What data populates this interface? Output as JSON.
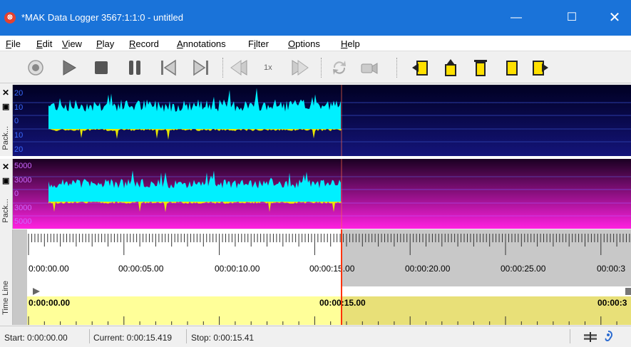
{
  "window": {
    "title": "*MAK Data Logger 3567:1:1:0 - untitled"
  },
  "menu": [
    "File",
    "Edit",
    "View",
    "Play",
    "Record",
    "Annotations",
    "Filter",
    "Options",
    "Help"
  ],
  "menu_mnemonics": [
    "F",
    "E",
    "V",
    "P",
    "R",
    "A",
    "i",
    "O",
    "H"
  ],
  "toolbar": {
    "speed_label": "1x",
    "buttons": [
      "record-icon",
      "play-icon",
      "stop-icon",
      "pause-icon",
      "skip-to-start-icon",
      "skip-to-end-icon",
      "step-back-icon",
      "step-forward-icon",
      "loop-icon",
      "camera-icon",
      "annotation-left-icon",
      "annotation-up-icon",
      "annotation-marker-icon",
      "annotation-flag-icon",
      "annotation-right-icon"
    ]
  },
  "tracks": [
    {
      "label": "Pack...",
      "y_labels": [
        "20",
        "10",
        "0",
        "10",
        "20"
      ],
      "bg_top": "#000033",
      "bg_bottom": "#1a1a8a",
      "label_color": "#3a6aff"
    },
    {
      "label": "Pack...",
      "y_labels": [
        "5000",
        "3000",
        "0",
        "3000",
        "5000"
      ],
      "bg_top": "#220033",
      "bg_bottom": "#ff22dd",
      "label_color": "#cc66ff"
    }
  ],
  "timeline": {
    "label": "Time Line",
    "ticks": [
      "0:00:00.00",
      "00:00:05.00",
      "00:00:10.00",
      "00:00:15.00",
      "00:00:20.00",
      "00:00:25.00",
      "00:00:3"
    ],
    "range_start": "0:00:00.00",
    "range_mid": "00:00:15.00",
    "range_end": "00:00:3"
  },
  "status": {
    "start": "Start: 0:00:00.00",
    "current": "Current: 0:00:15.419",
    "stop": "Stop: 0:00:15.41"
  },
  "colors": {
    "titlebar": "#1a73d9",
    "wave": "#00ffff",
    "wave_neg": "#ffff00",
    "cursor": "#ff3300",
    "highlight": "#ffff99"
  }
}
